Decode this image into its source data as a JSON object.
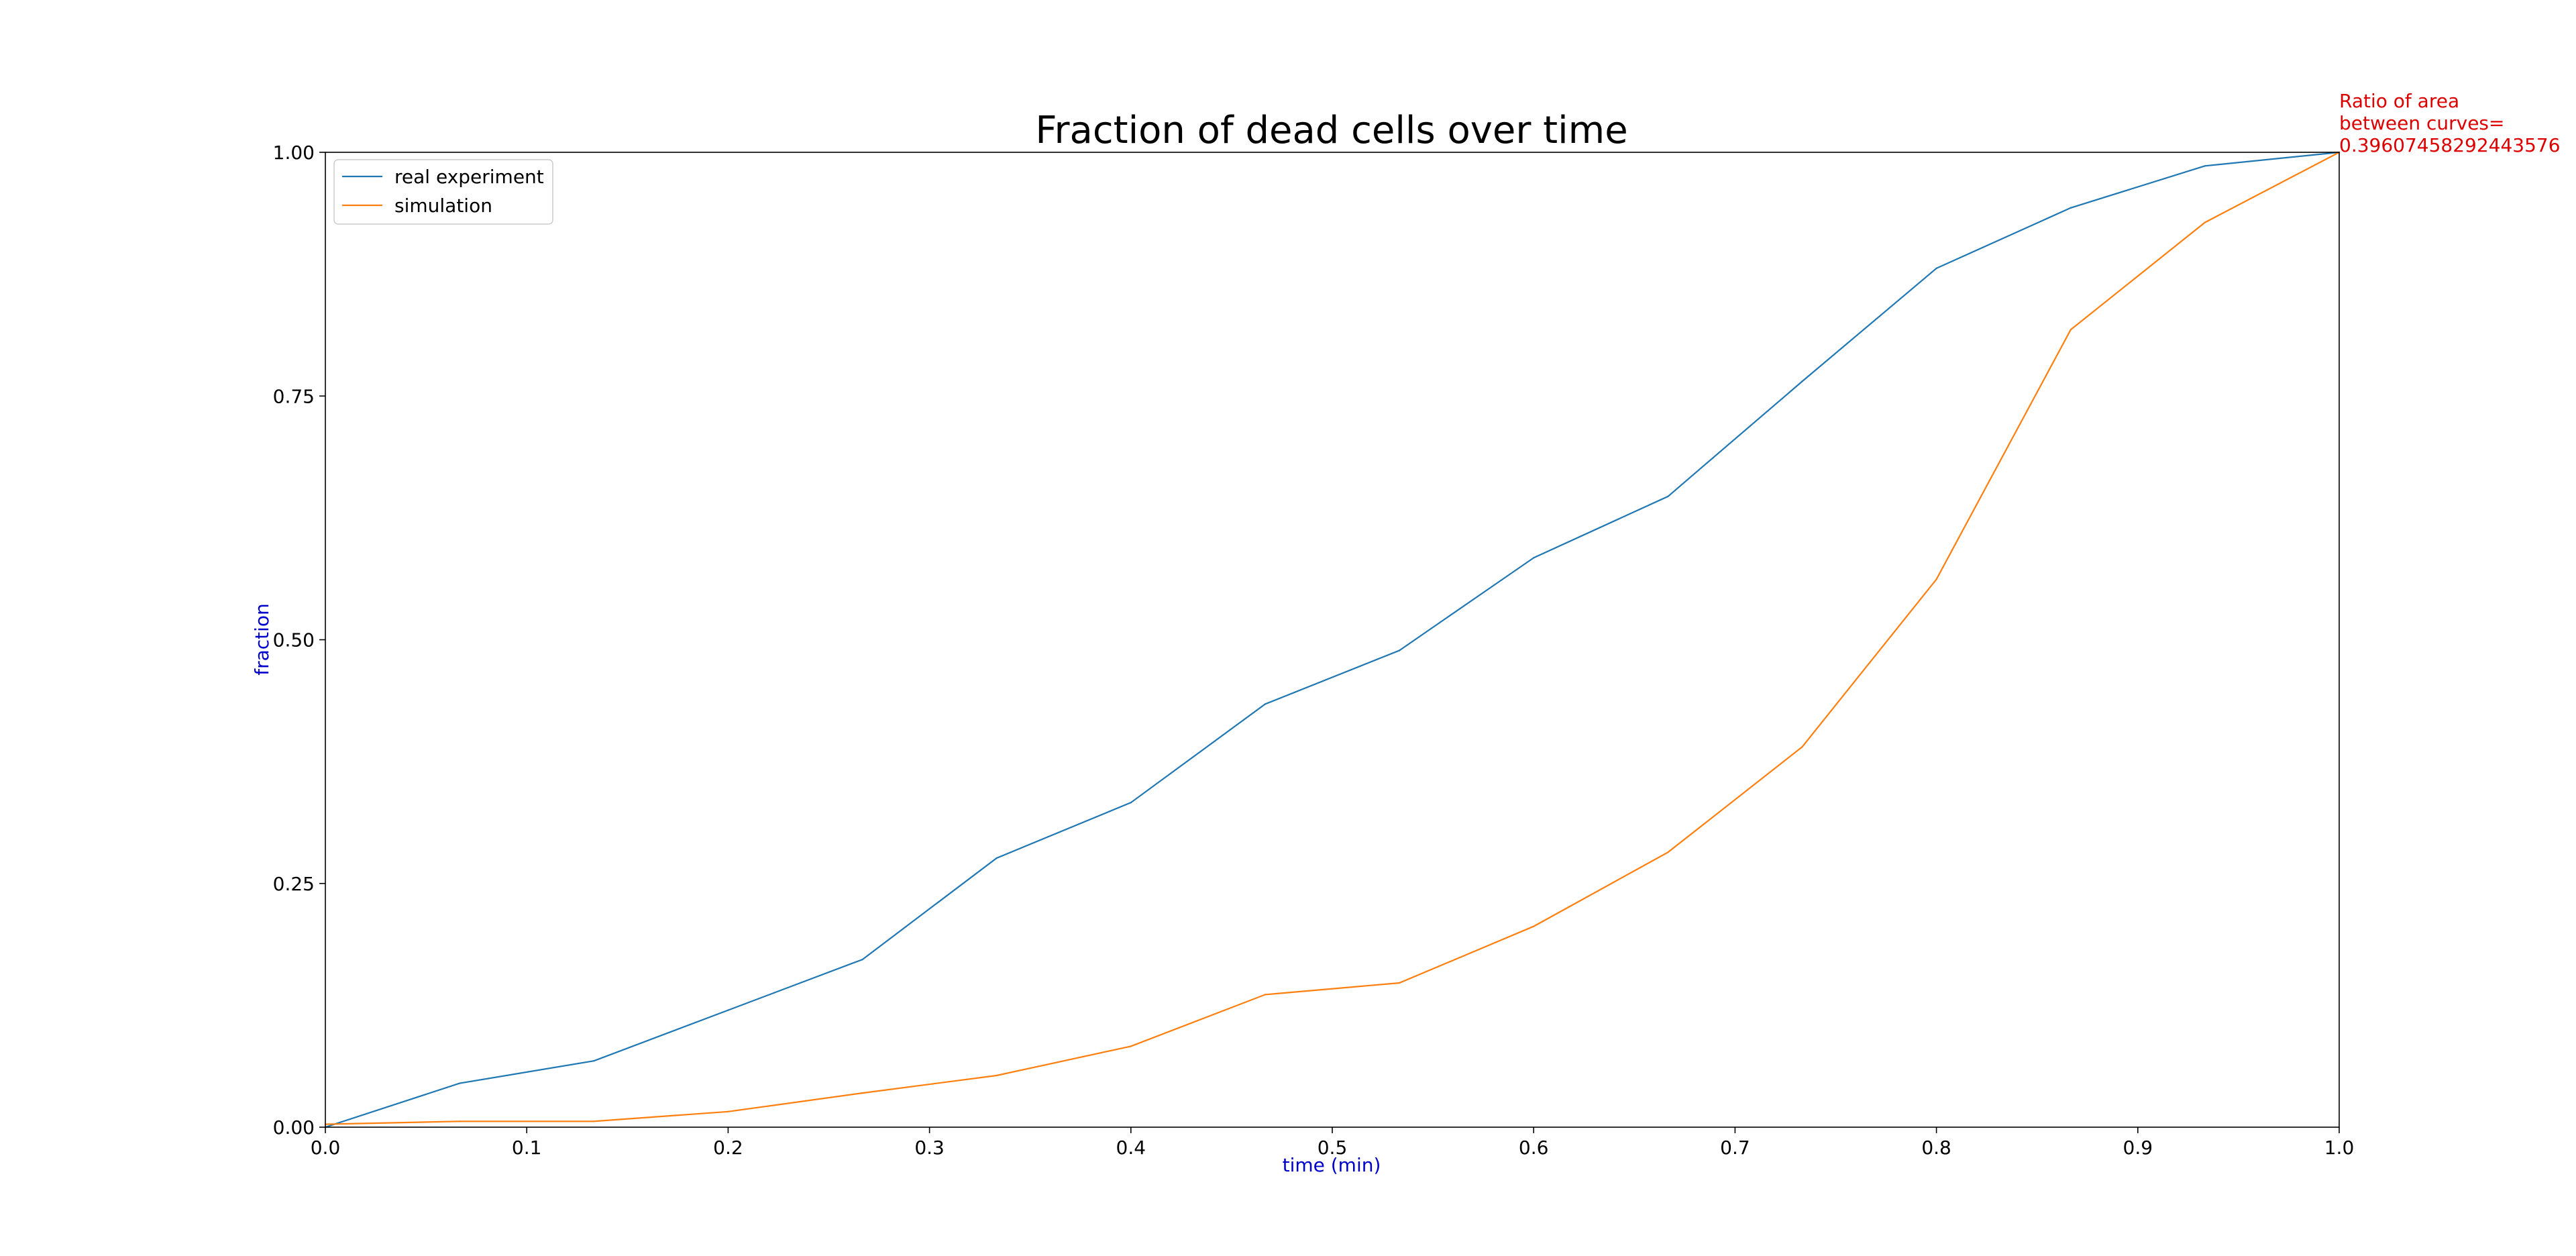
{
  "chart_data": {
    "type": "line",
    "title": "Fraction of dead cells over time",
    "xlabel": "time (min)",
    "ylabel": "fraction",
    "xlim": [
      0,
      1
    ],
    "ylim": [
      0,
      1
    ],
    "x_ticks": [
      "0.0",
      "0.1",
      "0.2",
      "0.3",
      "0.4",
      "0.5",
      "0.6",
      "0.7",
      "0.8",
      "0.9",
      "1.0"
    ],
    "y_ticks": [
      "0.00",
      "0.25",
      "0.50",
      "0.75",
      "1.00"
    ],
    "grid": false,
    "legend_position": "top-left",
    "label_color": "#0000cc",
    "annotation": {
      "lines": [
        "Ratio of area",
        "between curves=",
        "0.39607458292443576"
      ],
      "color": "#dd0000"
    },
    "x": [
      0.0,
      0.0667,
      0.1333,
      0.2,
      0.2667,
      0.3333,
      0.4,
      0.4667,
      0.5333,
      0.6,
      0.6667,
      0.7333,
      0.8,
      0.8667,
      0.9333,
      1.0
    ],
    "series": [
      {
        "name": "real experiment",
        "color": "#1f77b4",
        "values": [
          0.0,
          0.045,
          0.068,
          0.12,
          0.172,
          0.276,
          0.333,
          0.434,
          0.489,
          0.584,
          0.647,
          0.765,
          0.881,
          0.943,
          0.986,
          1.0
        ]
      },
      {
        "name": "simulation",
        "color": "#ff7f0e",
        "values": [
          0.003,
          0.006,
          0.006,
          0.016,
          0.035,
          0.053,
          0.083,
          0.136,
          0.148,
          0.206,
          0.282,
          0.39,
          0.562,
          0.818,
          0.928,
          1.0
        ]
      }
    ]
  }
}
